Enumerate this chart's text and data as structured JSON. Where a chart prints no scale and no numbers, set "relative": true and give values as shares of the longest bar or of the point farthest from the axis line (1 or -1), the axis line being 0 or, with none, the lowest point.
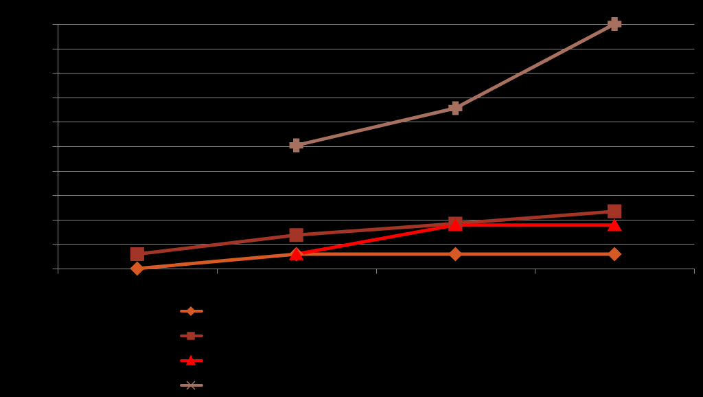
{
  "chart_data": {
    "type": "line",
    "relative": true,
    "categories": [
      null,
      null,
      null,
      null
    ],
    "series": [
      {
        "color": "#d65a23",
        "marker": "diamond",
        "values": [
          0,
          0.059,
          0.059,
          0.059
        ]
      },
      {
        "color": "#a33526",
        "marker": "square",
        "values": [
          0.059,
          0.137,
          0.184,
          0.234
        ]
      },
      {
        "color": "#ff0000",
        "marker": "triangle",
        "values": [
          null,
          0.059,
          0.178,
          0.178
        ]
      },
      {
        "color": "#a8705f",
        "marker": "cross",
        "values": [
          null,
          0.504,
          0.656,
          1
        ]
      }
    ],
    "grid": "y"
  }
}
